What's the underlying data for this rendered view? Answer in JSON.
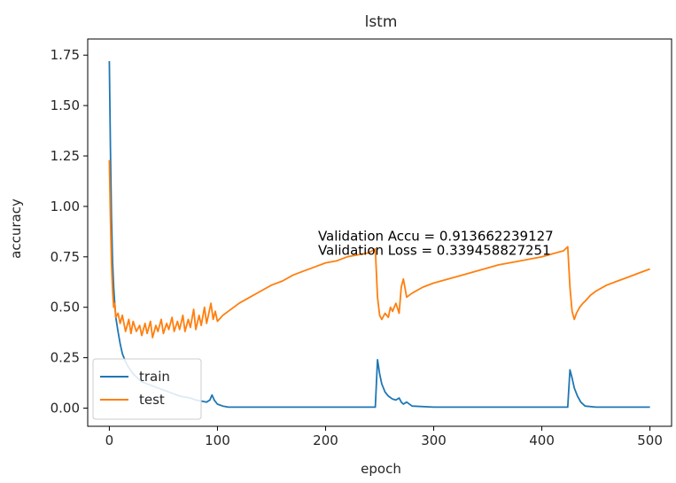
{
  "chart_data": {
    "type": "line",
    "title": "lstm",
    "xlabel": "epoch",
    "ylabel": "accuracy",
    "xlim": [
      -20,
      520
    ],
    "ylim": [
      -0.09,
      1.83
    ],
    "xticks": [
      0,
      100,
      200,
      300,
      400,
      500
    ],
    "yticks": [
      0.0,
      0.25,
      0.5,
      0.75,
      1.0,
      1.25,
      1.5,
      1.75
    ],
    "xtick_labels": [
      "0",
      "100",
      "200",
      "300",
      "400",
      "500"
    ],
    "ytick_labels": [
      "0.00",
      "0.25",
      "0.50",
      "0.75",
      "1.00",
      "1.25",
      "1.50",
      "1.75"
    ],
    "grid": false,
    "legend_position": "lower-left",
    "annotations": [
      {
        "text": "Validation Accu = 0.913662239127",
        "x": 193,
        "y": 0.83
      },
      {
        "text": "Validation Loss = 0.339458827251",
        "x": 193,
        "y": 0.76
      }
    ],
    "series": [
      {
        "name": "train",
        "color": "#1f77b4",
        "x": [
          0,
          1,
          2,
          3,
          4,
          5,
          6,
          8,
          10,
          12,
          15,
          18,
          22,
          26,
          30,
          35,
          40,
          45,
          50,
          55,
          60,
          65,
          70,
          75,
          80,
          85,
          90,
          93,
          95,
          97,
          100,
          105,
          110,
          120,
          150,
          200,
          240,
          246,
          248,
          250,
          252,
          255,
          258,
          262,
          265,
          268,
          270,
          272,
          275,
          280,
          300,
          350,
          400,
          420,
          424,
          426,
          428,
          430,
          433,
          436,
          440,
          450,
          475,
          500
        ],
        "y": [
          1.72,
          1.3,
          0.95,
          0.72,
          0.6,
          0.52,
          0.45,
          0.38,
          0.32,
          0.27,
          0.23,
          0.2,
          0.17,
          0.15,
          0.13,
          0.12,
          0.11,
          0.1,
          0.09,
          0.08,
          0.07,
          0.06,
          0.055,
          0.05,
          0.04,
          0.035,
          0.03,
          0.04,
          0.065,
          0.04,
          0.02,
          0.01,
          0.005,
          0.005,
          0.005,
          0.005,
          0.005,
          0.005,
          0.24,
          0.17,
          0.12,
          0.08,
          0.06,
          0.045,
          0.04,
          0.05,
          0.03,
          0.02,
          0.03,
          0.01,
          0.005,
          0.005,
          0.005,
          0.005,
          0.005,
          0.19,
          0.15,
          0.1,
          0.06,
          0.03,
          0.01,
          0.005,
          0.005,
          0.005
        ]
      },
      {
        "name": "test",
        "color": "#ff7f0e",
        "x": [
          0,
          1,
          2,
          3,
          4,
          5,
          6,
          8,
          10,
          12,
          15,
          18,
          20,
          22,
          25,
          28,
          30,
          33,
          35,
          38,
          40,
          43,
          45,
          48,
          50,
          53,
          55,
          58,
          60,
          63,
          65,
          68,
          70,
          73,
          75,
          78,
          80,
          83,
          85,
          88,
          90,
          92,
          94,
          96,
          98,
          100,
          105,
          110,
          120,
          130,
          140,
          150,
          160,
          170,
          180,
          190,
          200,
          210,
          220,
          230,
          240,
          246,
          248,
          250,
          252,
          255,
          258,
          260,
          262,
          265,
          268,
          270,
          272,
          275,
          280,
          290,
          300,
          320,
          340,
          360,
          380,
          400,
          420,
          424,
          426,
          428,
          430,
          432,
          435,
          438,
          440,
          445,
          450,
          460,
          470,
          480,
          490,
          500
        ],
        "y": [
          1.23,
          0.95,
          0.72,
          0.58,
          0.5,
          0.52,
          0.45,
          0.47,
          0.42,
          0.46,
          0.38,
          0.44,
          0.37,
          0.43,
          0.38,
          0.41,
          0.36,
          0.42,
          0.37,
          0.43,
          0.35,
          0.41,
          0.38,
          0.44,
          0.37,
          0.42,
          0.39,
          0.45,
          0.38,
          0.43,
          0.39,
          0.46,
          0.38,
          0.44,
          0.4,
          0.49,
          0.39,
          0.46,
          0.41,
          0.5,
          0.42,
          0.47,
          0.52,
          0.44,
          0.48,
          0.43,
          0.46,
          0.48,
          0.52,
          0.55,
          0.58,
          0.61,
          0.63,
          0.66,
          0.68,
          0.7,
          0.72,
          0.73,
          0.75,
          0.76,
          0.77,
          0.79,
          0.55,
          0.46,
          0.44,
          0.47,
          0.45,
          0.5,
          0.48,
          0.52,
          0.47,
          0.6,
          0.64,
          0.55,
          0.57,
          0.6,
          0.62,
          0.65,
          0.68,
          0.71,
          0.73,
          0.75,
          0.78,
          0.8,
          0.6,
          0.48,
          0.44,
          0.47,
          0.5,
          0.52,
          0.53,
          0.56,
          0.58,
          0.61,
          0.63,
          0.65,
          0.67,
          0.69
        ]
      }
    ]
  }
}
